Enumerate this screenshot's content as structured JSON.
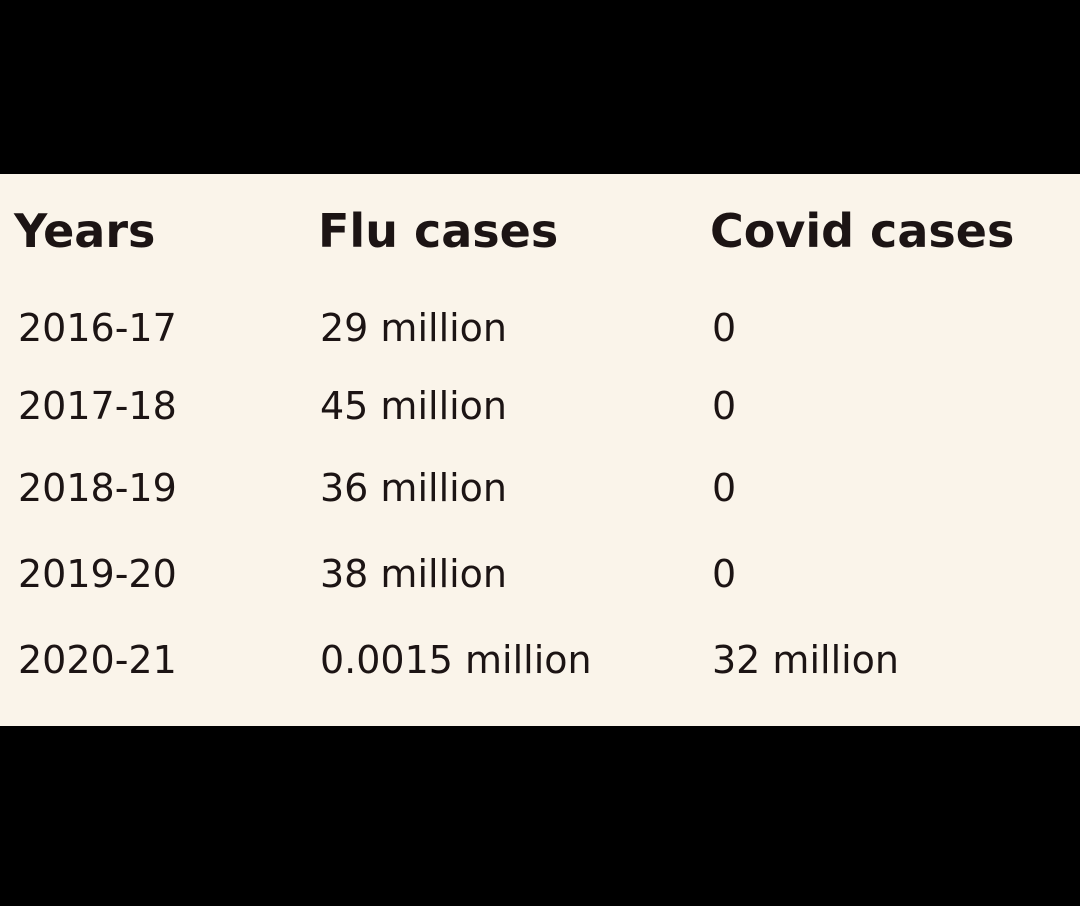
{
  "table": {
    "header": [
      "Years",
      "Flu cases",
      "Covid cases"
    ],
    "rows": [
      [
        "2016-17",
        "29 million",
        "0"
      ],
      [
        "2017-18",
        "45 million",
        "0"
      ],
      [
        "2018-19",
        "36 million",
        "0"
      ],
      [
        "2019-20",
        "38 million",
        "0"
      ],
      [
        "2020-21",
        "0.0015 million",
        "32 million"
      ]
    ]
  }
}
